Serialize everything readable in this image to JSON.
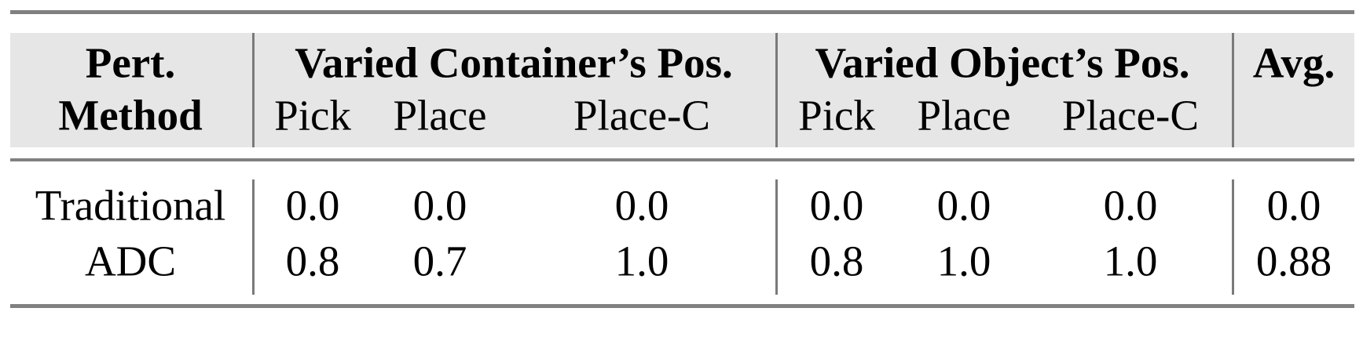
{
  "table": {
    "header": {
      "method_line1": "Pert.",
      "method_line2": "Method",
      "group_container": "Varied Container’s Pos.",
      "group_object": "Varied Object’s Pos.",
      "avg": "Avg.",
      "subcolumns": [
        "Pick",
        "Place",
        "Place-C",
        "Pick",
        "Place",
        "Place-C"
      ]
    },
    "rows": [
      {
        "method": "Traditional",
        "values": [
          "0.0",
          "0.0",
          "0.0",
          "0.0",
          "0.0",
          "0.0"
        ],
        "avg": "0.0"
      },
      {
        "method": "ADC",
        "values": [
          "0.8",
          "0.7",
          "1.0",
          "0.8",
          "1.0",
          "1.0"
        ],
        "avg": "0.88"
      }
    ]
  }
}
